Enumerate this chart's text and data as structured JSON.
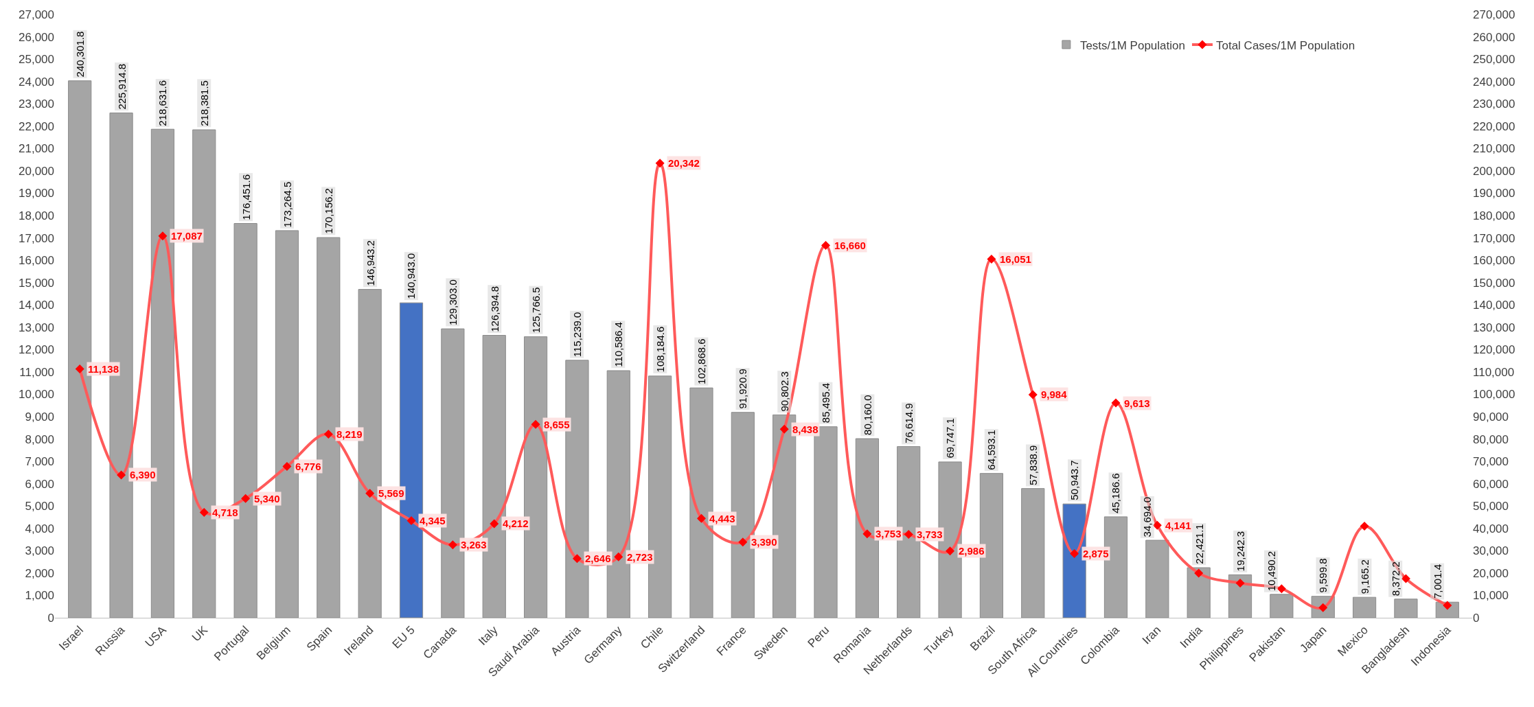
{
  "chart_data": {
    "type": "bar",
    "categories": [
      "Israel",
      "Russia",
      "USA",
      "UK",
      "Portugal",
      "Belgium",
      "Spain",
      "Ireland",
      "EU 5",
      "Canada",
      "Italy",
      "Saudi Arabia",
      "Austria",
      "Germany",
      "Chile",
      "Switzerland",
      "France",
      "Sweden",
      "Peru",
      "Romania",
      "Netherlands",
      "Turkey",
      "Brazil",
      "South Africa",
      "All Countries",
      "Colombia",
      "Iran",
      "India",
      "Philippines",
      "Pakistan",
      "Japan",
      "Mexico",
      "Bangladesh",
      "Indonesia"
    ],
    "series": [
      {
        "name": "Tests/1M Population",
        "axis": "y2",
        "colors": [
          "#a5a5a5",
          "#a5a5a5",
          "#a5a5a5",
          "#a5a5a5",
          "#a5a5a5",
          "#a5a5a5",
          "#a5a5a5",
          "#a5a5a5",
          "#4472c4",
          "#a5a5a5",
          "#a5a5a5",
          "#a5a5a5",
          "#a5a5a5",
          "#a5a5a5",
          "#a5a5a5",
          "#a5a5a5",
          "#a5a5a5",
          "#a5a5a5",
          "#a5a5a5",
          "#a5a5a5",
          "#a5a5a5",
          "#a5a5a5",
          "#a5a5a5",
          "#a5a5a5",
          "#4472c4",
          "#a5a5a5",
          "#a5a5a5",
          "#a5a5a5",
          "#a5a5a5",
          "#a5a5a5",
          "#a5a5a5",
          "#a5a5a5",
          "#a5a5a5",
          "#a5a5a5"
        ],
        "values": [
          240301.8,
          225914.8,
          218631.6,
          218381.5,
          176451.6,
          173264.5,
          170156.2,
          146943.2,
          140943.0,
          129303.0,
          126394.8,
          125766.5,
          115239.0,
          110586.4,
          108184.6,
          102868.6,
          91920.9,
          90802.3,
          85495.4,
          80160.0,
          76614.9,
          69747.1,
          64593.1,
          57838.9,
          50943.7,
          45186.6,
          34694.0,
          22421.1,
          19242.3,
          10490.2,
          9599.8,
          9165.2,
          8372.2,
          7001.4
        ],
        "value_labels": [
          "240,301.8",
          "225,914.8",
          "218,631.6",
          "218,381.5",
          "176,451.6",
          "173,264.5",
          "170,156.2",
          "146,943.2",
          "140,943.0",
          "129,303.0",
          "126,394.8",
          "125,766.5",
          "115,239.0",
          "110,586.4",
          "108,184.6",
          "102,868.6",
          "91,920.9",
          "90,802.3",
          "85,495.4",
          "80,160.0",
          "76,614.9",
          "69,747.1",
          "64,593.1",
          "57,838.9",
          "50,943.7",
          "45,186.6",
          "34,694.0",
          "22,421.1",
          "19,242.3",
          "10,490.2",
          "9,599.8",
          "9,165.2",
          "8,372.2",
          "7,001.4"
        ]
      },
      {
        "name": "Total Cases/1M Population",
        "type": "line",
        "axis": "y",
        "color": "#ff5a5a",
        "marker": "diamond",
        "values": [
          11138,
          6390,
          17087,
          4718,
          5340,
          6776,
          8219,
          5569,
          4345,
          3263,
          4212,
          8655,
          2646,
          2723,
          20342,
          4443,
          3390,
          8438,
          16660,
          3753,
          3733,
          2986,
          16051,
          9984,
          2875,
          9613,
          4141,
          2000,
          1550,
          1300,
          450,
          4100,
          1750,
          550
        ],
        "value_labels": [
          "11,138",
          "6,390",
          "17,087",
          "4,718",
          "5,340",
          "6,776",
          "8,219",
          "5,569",
          "4,345",
          "3,263",
          "4,212",
          "8,655",
          "2,646",
          "2,723",
          "20,342",
          "4,443",
          "3,390",
          "8,438",
          "16,660",
          "3,753",
          "3,733",
          "2,986",
          "16,051",
          "9,984",
          "2,875",
          "9,613",
          "4,141",
          null,
          null,
          null,
          null,
          null,
          null,
          null
        ]
      }
    ],
    "ylim": [
      0,
      27000
    ],
    "yticks": [
      0,
      {
        "value": 1000,
        "label": "1,000"
      },
      {
        "value": 2000,
        "label": "2,000"
      },
      {
        "value": 3000,
        "label": "3,000"
      },
      {
        "value": 4000,
        "label": "4,000"
      },
      {
        "value": 5000,
        "label": "5,000"
      },
      {
        "value": 6000,
        "label": "6,000"
      },
      {
        "value": 7000,
        "label": "7,000"
      },
      {
        "value": 8000,
        "label": "8,000"
      },
      {
        "value": 9000,
        "label": "9,000"
      },
      {
        "value": 10000,
        "label": "10,000"
      },
      {
        "value": 11000,
        "label": "11,000"
      },
      {
        "value": 12000,
        "label": "12,000"
      },
      {
        "value": 13000,
        "label": "13,000"
      },
      {
        "value": 14000,
        "label": "14,000"
      },
      {
        "value": 15000,
        "label": "15,000"
      },
      {
        "value": 16000,
        "label": "16,000"
      },
      {
        "value": 17000,
        "label": "17,000"
      },
      {
        "value": 18000,
        "label": "18,000"
      },
      {
        "value": 19000,
        "label": "19,000"
      },
      {
        "value": 20000,
        "label": "20,000"
      },
      {
        "value": 21000,
        "label": "21,000"
      },
      {
        "value": 22000,
        "label": "22,000"
      },
      {
        "value": 23000,
        "label": "23,000"
      },
      {
        "value": 24000,
        "label": "24,000"
      },
      {
        "value": 25000,
        "label": "25,000"
      },
      {
        "value": 26000,
        "label": "26,000"
      },
      {
        "value": 27000,
        "label": "27,000"
      }
    ],
    "y2lim": [
      0,
      270000
    ],
    "y2ticks": [
      0,
      {
        "value": 10000,
        "label": "10,000"
      },
      {
        "value": 20000,
        "label": "20,000"
      },
      {
        "value": 30000,
        "label": "30,000"
      },
      {
        "value": 40000,
        "label": "40,000"
      },
      {
        "value": 50000,
        "label": "50,000"
      },
      {
        "value": 60000,
        "label": "60,000"
      },
      {
        "value": 70000,
        "label": "70,000"
      },
      {
        "value": 80000,
        "label": "80,000"
      },
      {
        "value": 90000,
        "label": "90,000"
      },
      {
        "value": 100000,
        "label": "100,000"
      },
      {
        "value": 110000,
        "label": "110,000"
      },
      {
        "value": 120000,
        "label": "120,000"
      },
      {
        "value": 130000,
        "label": "130,000"
      },
      {
        "value": 140000,
        "label": "140,000"
      },
      {
        "value": 150000,
        "label": "150,000"
      },
      {
        "value": 160000,
        "label": "160,000"
      },
      {
        "value": 170000,
        "label": "170,000"
      },
      {
        "value": 180000,
        "label": "180,000"
      },
      {
        "value": 190000,
        "label": "190,000"
      },
      {
        "value": 200000,
        "label": "200,000"
      },
      {
        "value": 210000,
        "label": "210,000"
      },
      {
        "value": 220000,
        "label": "220,000"
      },
      {
        "value": 230000,
        "label": "230,000"
      },
      {
        "value": 240000,
        "label": "240,000"
      },
      {
        "value": 250000,
        "label": "250,000"
      },
      {
        "value": 260000,
        "label": "260,000"
      },
      {
        "value": 270000,
        "label": "270,000"
      }
    ],
    "legend": "top right"
  }
}
